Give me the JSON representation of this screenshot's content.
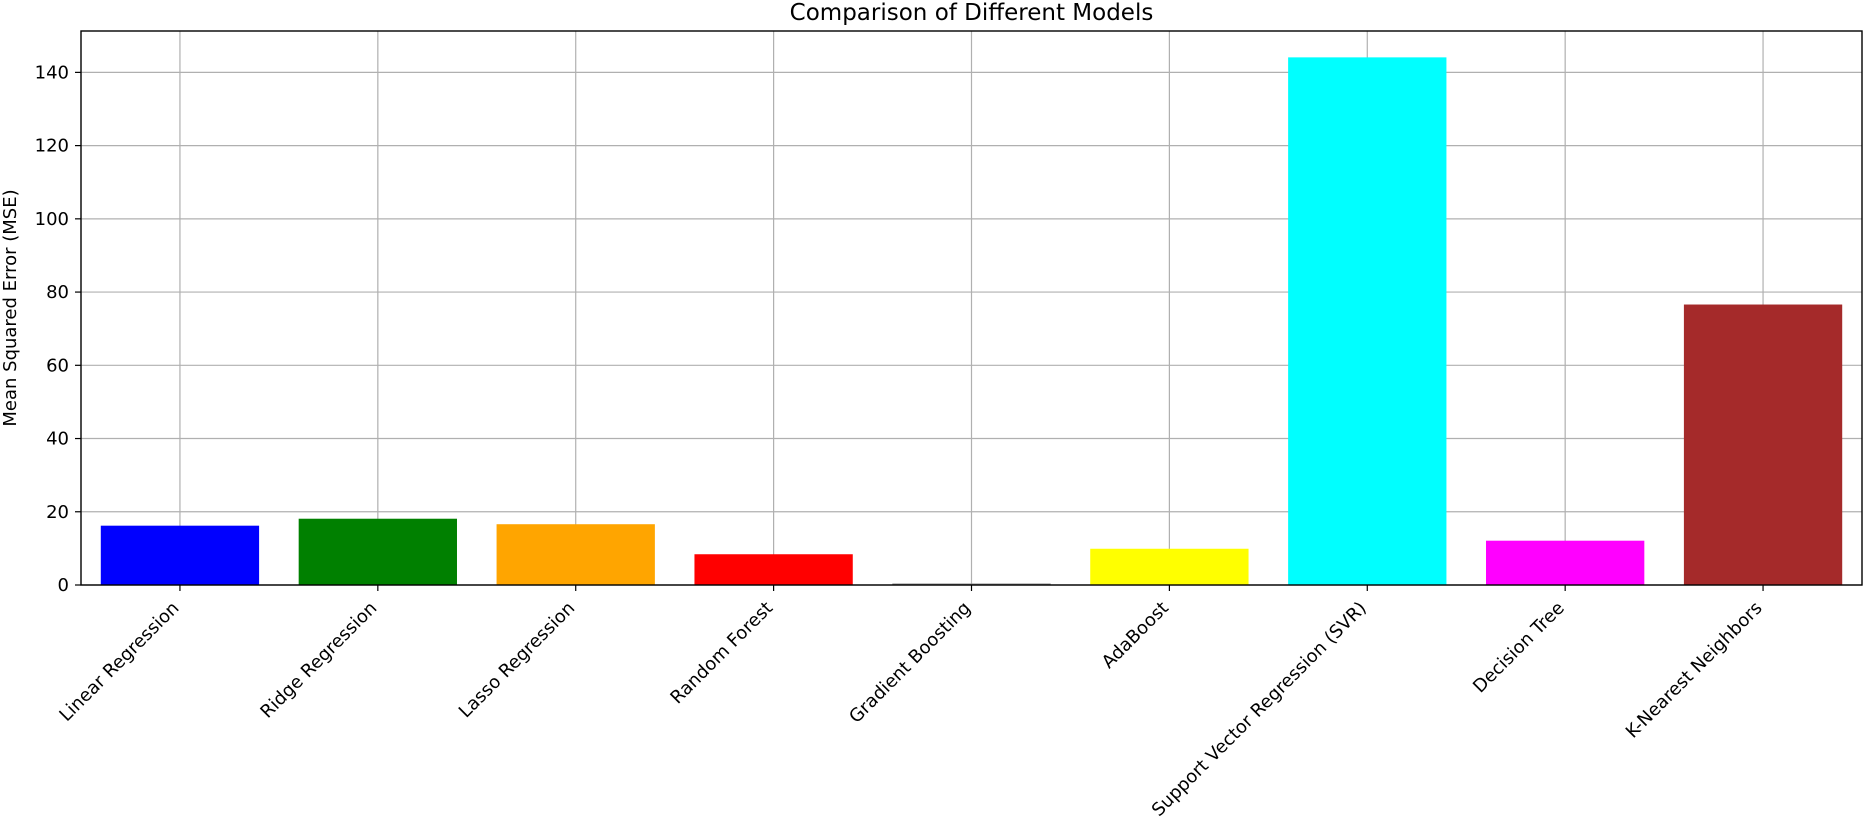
{
  "chart_data": {
    "type": "bar",
    "title": "Comparison of Different Models",
    "xlabel": "",
    "ylabel": "Mean Squared Error (MSE)",
    "categories": [
      "Linear Regression",
      "Ridge Regression",
      "Lasso Regression",
      "Random Forest",
      "Gradient Boosting",
      "AdaBoost",
      "Support Vector Regression (SVR)",
      "Decision Tree",
      "K-Nearest Neighbors"
    ],
    "values": [
      16.2,
      18.1,
      16.6,
      8.4,
      0.4,
      9.9,
      144.1,
      12.1,
      76.6
    ],
    "colors": [
      "#0000ff",
      "#008000",
      "#ffa500",
      "#ff0000",
      "#808080",
      "#ffff00",
      "#00ffff",
      "#ff00ff",
      "#a52a2a"
    ],
    "ylim": [
      0,
      151.3
    ],
    "yticks": [
      0,
      20,
      40,
      60,
      80,
      100,
      120,
      140
    ],
    "grid": true,
    "legend": "none"
  }
}
